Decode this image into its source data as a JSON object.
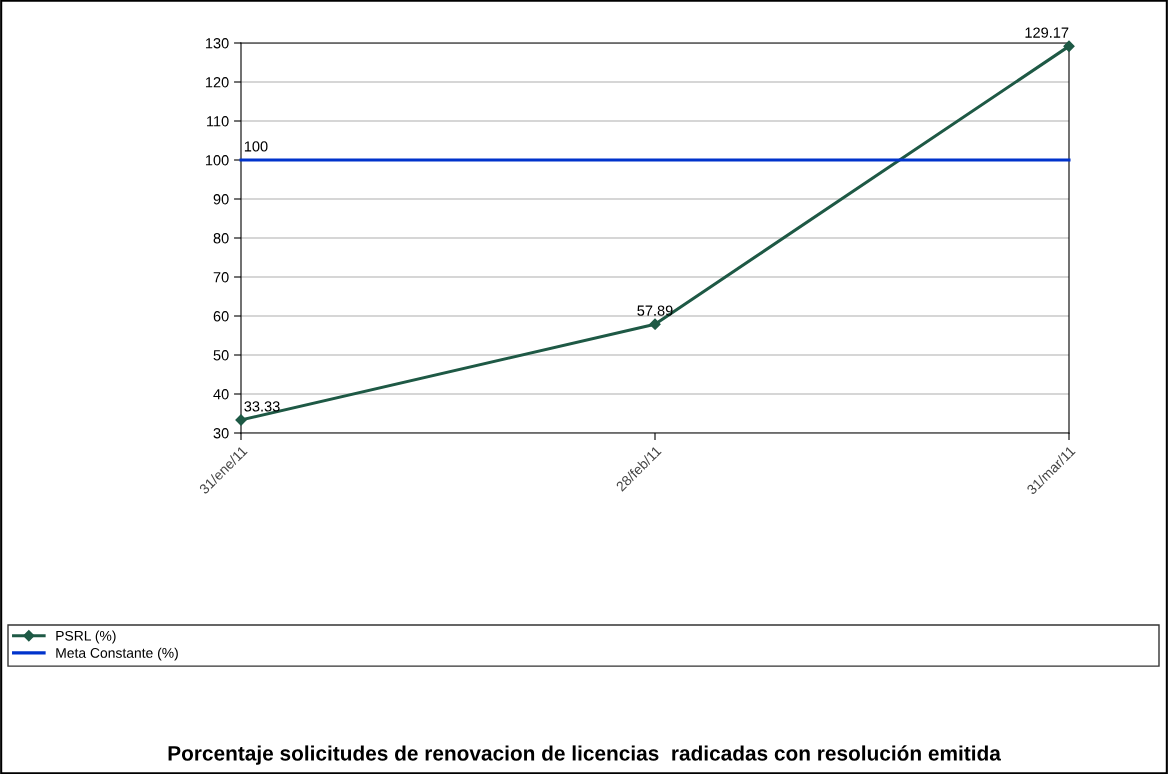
{
  "chart_data": {
    "type": "line",
    "title": "Porcentaje solicitudes de renovacion de licencias  radicadas con resolución emitida",
    "categories": [
      "31/ene/11",
      "28/feb/11",
      "31/mar/11"
    ],
    "series": [
      {
        "name": "PSRL (%)",
        "color": "#1e5945",
        "values": [
          33.33,
          57.89,
          129.17
        ],
        "marker": "diamond",
        "value_labels": [
          "33.33",
          "57.89",
          "129.17"
        ]
      },
      {
        "name": "Meta Constante (%)",
        "color": "#0033cc",
        "values": [
          100,
          100,
          100
        ],
        "marker": "none",
        "value_labels": [
          "100",
          null,
          null
        ]
      }
    ],
    "ylim": [
      30,
      130
    ],
    "yticks": [
      30,
      40,
      50,
      60,
      70,
      80,
      90,
      100,
      110,
      120,
      130
    ],
    "grid": "y",
    "legend": "bottom",
    "line_style": "solid"
  }
}
